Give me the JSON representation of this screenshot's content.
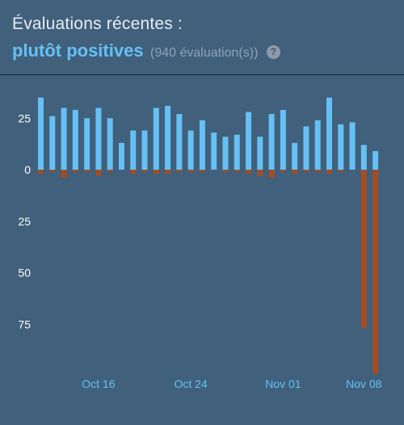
{
  "header": {
    "title": "Évaluations récentes :",
    "summary": "plutôt positives",
    "review_count": "(940 évaluation(s))",
    "help_glyph": "?"
  },
  "colors": {
    "background": "#40607c",
    "positive": "#66c0f4",
    "negative": "#a34c25",
    "axis_text": "#ffffff",
    "date_text": "#66c0f4"
  },
  "chart_data": {
    "type": "bar",
    "ylim": [
      -95,
      35
    ],
    "yticks": [
      {
        "value": 25,
        "label": "25"
      },
      {
        "value": 0,
        "label": "0"
      },
      {
        "value": -25,
        "label": "25"
      },
      {
        "value": -50,
        "label": "50"
      },
      {
        "value": -75,
        "label": "75"
      }
    ],
    "xticks": [
      {
        "index": 5,
        "label": "Oct 16"
      },
      {
        "index": 13,
        "label": "Oct 24"
      },
      {
        "index": 21,
        "label": "Nov 01"
      },
      {
        "index": 28,
        "label": "Nov 08"
      }
    ],
    "series": [
      {
        "name": "positive",
        "values": [
          35,
          26,
          30,
          29,
          25,
          30,
          25,
          13,
          19,
          19,
          30,
          31,
          27,
          19,
          24,
          18,
          16,
          17,
          28,
          16,
          27,
          29,
          13,
          21,
          24,
          35,
          22,
          23,
          12,
          9
        ]
      },
      {
        "name": "negative",
        "values": [
          -2,
          -1,
          -4,
          -1,
          -1,
          -3,
          -1,
          0,
          -2,
          -1,
          -2,
          -2,
          -1,
          -1,
          -1,
          0,
          -1,
          -1,
          -2,
          -3,
          -4,
          -1,
          -2,
          -1,
          -1,
          -2,
          -1,
          0,
          -77,
          -99
        ]
      }
    ]
  }
}
